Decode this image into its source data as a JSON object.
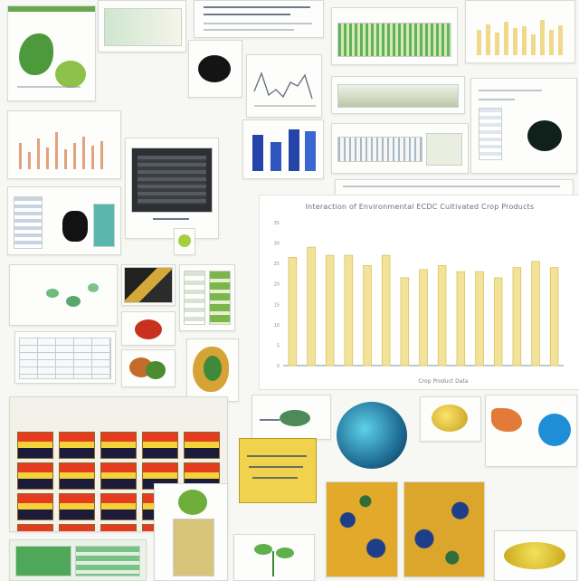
{
  "collage": {
    "description_label": "",
    "main_chart": {
      "title": "Interaction of Environmental ECDC Cultivated Crop Products",
      "footer": "Crop Product Data"
    }
  },
  "chart_data": {
    "type": "bar",
    "title": "Interaction of Environmental ECDC Cultivated Crop Products",
    "categories": [
      "",
      "",
      "",
      "",
      "",
      "",
      "",
      "",
      "",
      "",
      "",
      "",
      "",
      "",
      ""
    ],
    "values": [
      26.5,
      29.0,
      27.0,
      27.0,
      24.5,
      27.0,
      21.5,
      23.5,
      24.5,
      23.0,
      23.0,
      21.5,
      24.0,
      25.5,
      24.0
    ],
    "ylim": [
      0,
      35
    ],
    "yticks": [
      "0",
      "5",
      "10",
      "15",
      "20",
      "25",
      "30",
      "35"
    ],
    "xlabel": "",
    "ylabel": "",
    "colors": {
      "bar": "#f3e39a",
      "bar_edge": "#d9c35a",
      "axis": "#8a8f96"
    }
  }
}
